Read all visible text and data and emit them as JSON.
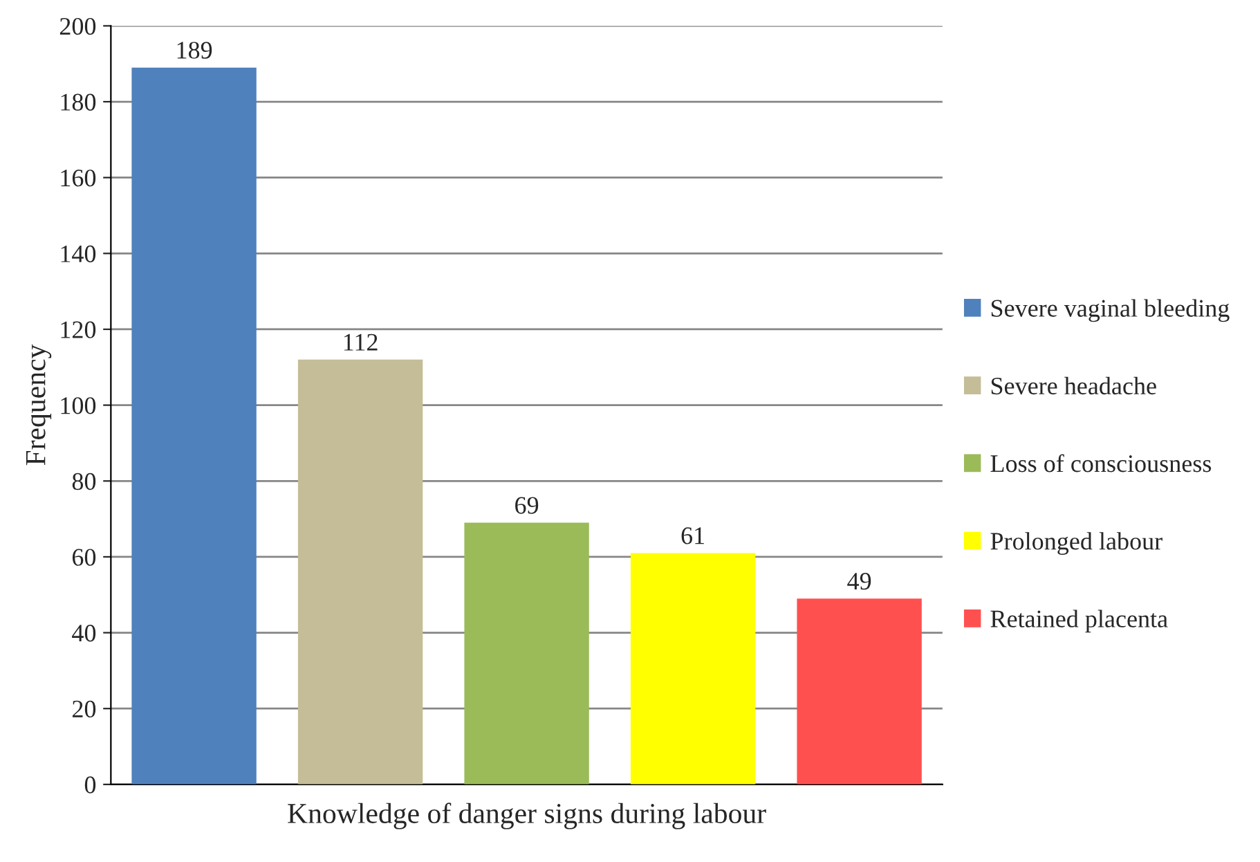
{
  "chart_data": {
    "type": "bar",
    "xlabel": "Knowledge of danger signs during labour",
    "ylabel": "Frequency",
    "categories": [
      null,
      null,
      null,
      null,
      null
    ],
    "series": [
      {
        "name": "Severe vaginal bleeding",
        "color": "#4f81bd",
        "values": [
          189,
          null,
          null,
          null,
          null
        ]
      },
      {
        "name": "Severe headache",
        "color": "#c4bd97",
        "values": [
          null,
          112,
          null,
          null,
          null
        ]
      },
      {
        "name": "Loss of consciousness",
        "color": "#9bbb59",
        "values": [
          null,
          null,
          69,
          null,
          null
        ]
      },
      {
        "name": "Prolonged labour",
        "color": "#ffff00",
        "values": [
          null,
          null,
          null,
          61,
          null
        ]
      },
      {
        "name": "Retained placenta",
        "color": "#ff5050",
        "values": [
          null,
          null,
          null,
          null,
          49
        ]
      }
    ],
    "ylim": [
      0,
      200
    ],
    "yticks": [
      0,
      20,
      40,
      60,
      80,
      100,
      120,
      140,
      160,
      180,
      200
    ],
    "grid": "y",
    "legend": "right",
    "data_labels": true
  }
}
